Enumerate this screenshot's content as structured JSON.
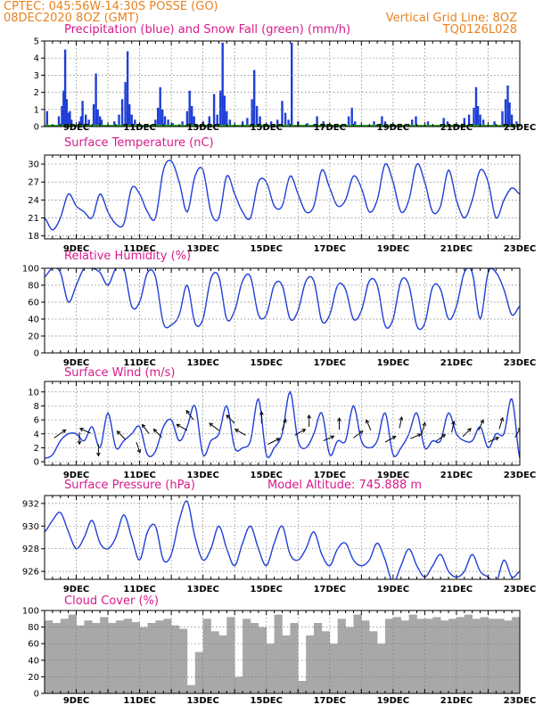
{
  "header": {
    "line1_left": "CPTEC:   045:56W-14:30S   POSSE (GO)",
    "line2_left": "08DEC2020 8OZ (GMT)",
    "line2_right": "Vertical Grid Line: 8OZ",
    "line3_right": "TQ0126L028"
  },
  "colors": {
    "line": "#1f3fd8",
    "snow": "#22aa22",
    "header": "#e8821e",
    "title": "#d81a8c",
    "cloud": "#a8a8a8"
  },
  "x_axis": {
    "start_day": 8,
    "end_day": 23,
    "tick_labels": [
      {
        "day": 9,
        "label": "9DEC"
      },
      {
        "day": 11,
        "label": "11DEC"
      },
      {
        "day": 13,
        "label": "13DEC"
      },
      {
        "day": 15,
        "label": "15DEC"
      },
      {
        "day": 17,
        "label": "17DEC"
      },
      {
        "day": 19,
        "label": "19DEC"
      },
      {
        "day": 21,
        "label": "21DEC"
      },
      {
        "day": 23,
        "label": "23DEC"
      }
    ],
    "minor_ticks_per_day": 4
  },
  "chart_data": [
    {
      "id": "precip",
      "type": "bar",
      "title": "Precipitation (blue) and Snow Fall (green) (mm/h)",
      "ylim": [
        0,
        5
      ],
      "yticks": [
        0,
        1,
        2,
        3,
        4,
        5
      ],
      "series": [
        {
          "name": "Precipitation",
          "color": "#1f3fd8",
          "points": [
            [
              8.08,
              0.9
            ],
            [
              8.45,
              0.6
            ],
            [
              8.55,
              1.2
            ],
            [
              8.6,
              2.1
            ],
            [
              8.65,
              4.5
            ],
            [
              8.7,
              1.6
            ],
            [
              8.75,
              0.8
            ],
            [
              8.8,
              0.9
            ],
            [
              8.85,
              0.4
            ],
            [
              9.1,
              0.3
            ],
            [
              9.15,
              0.6
            ],
            [
              9.2,
              1.5
            ],
            [
              9.3,
              0.7
            ],
            [
              9.4,
              0.4
            ],
            [
              9.55,
              1.3
            ],
            [
              9.62,
              3.1
            ],
            [
              9.68,
              1.0
            ],
            [
              9.75,
              0.6
            ],
            [
              9.8,
              0.4
            ],
            [
              10.2,
              0.3
            ],
            [
              10.35,
              0.7
            ],
            [
              10.45,
              1.6
            ],
            [
              10.55,
              2.6
            ],
            [
              10.62,
              4.4
            ],
            [
              10.68,
              1.3
            ],
            [
              10.75,
              0.7
            ],
            [
              10.85,
              0.4
            ],
            [
              11.5,
              0.4
            ],
            [
              11.58,
              1.1
            ],
            [
              11.65,
              2.3
            ],
            [
              11.72,
              1.0
            ],
            [
              11.8,
              0.6
            ],
            [
              11.9,
              0.4
            ],
            [
              12.05,
              0.2
            ],
            [
              12.35,
              0.3
            ],
            [
              12.5,
              0.9
            ],
            [
              12.58,
              2.1
            ],
            [
              12.65,
              1.2
            ],
            [
              12.72,
              0.6
            ],
            [
              13.0,
              0.3
            ],
            [
              13.2,
              0.6
            ],
            [
              13.35,
              1.9
            ],
            [
              13.45,
              0.7
            ],
            [
              13.55,
              2.1
            ],
            [
              13.62,
              4.9
            ],
            [
              13.68,
              1.8
            ],
            [
              13.75,
              0.9
            ],
            [
              13.85,
              0.4
            ],
            [
              14.25,
              0.3
            ],
            [
              14.4,
              0.5
            ],
            [
              14.55,
              1.6
            ],
            [
              14.62,
              3.3
            ],
            [
              14.7,
              1.2
            ],
            [
              14.8,
              0.6
            ],
            [
              15.15,
              0.3
            ],
            [
              15.35,
              0.4
            ],
            [
              15.5,
              1.5
            ],
            [
              15.6,
              0.8
            ],
            [
              15.7,
              0.4
            ],
            [
              15.8,
              4.9
            ],
            [
              16.0,
              0.3
            ],
            [
              16.3,
              0.2
            ],
            [
              16.6,
              0.6
            ],
            [
              16.8,
              0.3
            ],
            [
              17.6,
              0.6
            ],
            [
              17.7,
              1.1
            ],
            [
              17.8,
              0.3
            ],
            [
              18.4,
              0.3
            ],
            [
              18.65,
              0.6
            ],
            [
              18.75,
              0.3
            ],
            [
              19.6,
              0.4
            ],
            [
              19.72,
              0.6
            ],
            [
              20.1,
              0.3
            ],
            [
              20.6,
              0.5
            ],
            [
              20.72,
              0.3
            ],
            [
              21.25,
              0.5
            ],
            [
              21.4,
              0.7
            ],
            [
              21.55,
              1.1
            ],
            [
              21.62,
              2.3
            ],
            [
              21.68,
              1.2
            ],
            [
              21.75,
              0.7
            ],
            [
              21.85,
              0.4
            ],
            [
              22.2,
              0.3
            ],
            [
              22.45,
              0.9
            ],
            [
              22.55,
              1.6
            ],
            [
              22.62,
              2.4
            ],
            [
              22.68,
              1.4
            ],
            [
              22.75,
              0.7
            ],
            [
              22.9,
              0.3
            ]
          ]
        },
        {
          "name": "Snow Fall",
          "color": "#22aa22",
          "values": [
            0
          ]
        }
      ]
    },
    {
      "id": "temp",
      "type": "line",
      "title": "Surface Temperature (nC)",
      "ylim": [
        17.5,
        31.5
      ],
      "yticks": [
        18,
        21,
        24,
        27,
        30
      ],
      "x": [
        8.0,
        8.25,
        8.5,
        8.75,
        9.0,
        9.25,
        9.5,
        9.75,
        10.0,
        10.25,
        10.5,
        10.75,
        11.0,
        11.25,
        11.5,
        11.75,
        12.0,
        12.25,
        12.5,
        12.75,
        13.0,
        13.25,
        13.5,
        13.75,
        14.0,
        14.25,
        14.5,
        14.75,
        15.0,
        15.25,
        15.5,
        15.75,
        16.0,
        16.25,
        16.5,
        16.75,
        17.0,
        17.25,
        17.5,
        17.75,
        18.0,
        18.25,
        18.5,
        18.75,
        19.0,
        19.25,
        19.5,
        19.75,
        20.0,
        20.25,
        20.5,
        20.75,
        21.0,
        21.25,
        21.5,
        21.75,
        22.0,
        22.25,
        22.5,
        22.75,
        23.0
      ],
      "values": [
        21,
        19,
        21,
        25,
        23,
        22,
        21,
        25,
        22,
        20,
        20,
        26,
        25,
        22,
        21,
        29,
        30.5,
        27,
        22,
        28,
        29,
        22,
        21,
        28,
        25,
        22,
        21,
        27,
        27,
        23,
        23,
        28,
        25,
        22,
        23,
        29,
        26,
        23,
        24,
        28,
        26,
        22,
        24,
        30,
        27,
        22,
        24,
        30,
        27,
        22,
        23,
        29,
        24,
        21,
        24,
        29,
        27,
        21,
        24,
        26,
        25
      ]
    },
    {
      "id": "rh",
      "type": "line",
      "title": "Relative Humidity (%)",
      "ylim": [
        0,
        100
      ],
      "yticks": [
        0,
        20,
        40,
        60,
        80,
        100
      ],
      "x": [
        8.0,
        8.25,
        8.5,
        8.75,
        9.0,
        9.25,
        9.5,
        9.75,
        10.0,
        10.25,
        10.5,
        10.75,
        11.0,
        11.25,
        11.5,
        11.75,
        12.0,
        12.25,
        12.5,
        12.75,
        13.0,
        13.25,
        13.5,
        13.75,
        14.0,
        14.25,
        14.5,
        14.75,
        15.0,
        15.25,
        15.5,
        15.75,
        16.0,
        16.25,
        16.5,
        16.75,
        17.0,
        17.25,
        17.5,
        17.75,
        18.0,
        18.25,
        18.5,
        18.75,
        19.0,
        19.25,
        19.5,
        19.75,
        20.0,
        20.25,
        20.5,
        20.75,
        21.0,
        21.25,
        21.5,
        21.75,
        22.0,
        22.25,
        22.5,
        22.75,
        23.0
      ],
      "values": [
        90,
        100,
        95,
        60,
        80,
        100,
        100,
        95,
        80,
        100,
        100,
        55,
        60,
        95,
        90,
        35,
        33,
        45,
        80,
        35,
        40,
        88,
        90,
        40,
        50,
        85,
        90,
        45,
        45,
        80,
        80,
        40,
        50,
        85,
        85,
        38,
        45,
        80,
        75,
        40,
        50,
        85,
        80,
        32,
        40,
        85,
        80,
        32,
        35,
        78,
        75,
        40,
        55,
        95,
        95,
        40,
        95,
        95,
        75,
        45,
        55
      ]
    },
    {
      "id": "wind",
      "type": "line",
      "title": "Surface Wind (m/s)",
      "ylim": [
        -0.5,
        11.5
      ],
      "yticks": [
        0,
        2,
        4,
        6,
        8,
        10
      ],
      "x": [
        8.0,
        8.25,
        8.5,
        8.75,
        9.0,
        9.25,
        9.5,
        9.75,
        10.0,
        10.25,
        10.5,
        10.75,
        11.0,
        11.25,
        11.5,
        11.75,
        12.0,
        12.25,
        12.5,
        12.75,
        13.0,
        13.25,
        13.5,
        13.75,
        14.0,
        14.25,
        14.5,
        14.75,
        15.0,
        15.25,
        15.5,
        15.75,
        16.0,
        16.25,
        16.5,
        16.75,
        17.0,
        17.25,
        17.5,
        17.75,
        18.0,
        18.25,
        18.5,
        18.75,
        19.0,
        19.25,
        19.5,
        19.75,
        20.0,
        20.25,
        20.5,
        20.75,
        21.0,
        21.25,
        21.5,
        21.75,
        22.0,
        22.25,
        22.5,
        22.75,
        23.0
      ],
      "values": [
        0.5,
        1,
        3,
        4,
        4,
        3,
        5,
        2,
        7,
        2,
        3,
        4,
        5,
        1,
        1.5,
        5,
        6,
        3,
        5,
        8,
        1,
        3,
        4,
        8,
        2,
        2,
        3,
        9,
        1,
        2,
        4,
        10,
        3,
        2,
        4,
        7,
        1,
        3,
        3,
        8,
        3,
        2,
        3,
        7,
        1,
        2,
        4,
        7,
        2,
        3,
        3,
        7,
        4,
        3,
        3,
        5,
        2,
        4,
        4,
        9,
        0.5
      ],
      "arrows": [
        [
          8.3,
          3.4,
          1,
          0.7
        ],
        [
          9.1,
          4.2,
          0,
          -1
        ],
        [
          9.45,
          4.1,
          -0.9,
          0.4
        ],
        [
          9.7,
          2.5,
          0,
          -1
        ],
        [
          10.55,
          3.2,
          -0.7,
          0.7
        ],
        [
          10.9,
          2.8,
          0.3,
          -0.9
        ],
        [
          11.3,
          4.0,
          -0.6,
          0.8
        ],
        [
          11.7,
          3.5,
          -0.7,
          0.7
        ],
        [
          12.5,
          4.5,
          -0.9,
          0.5
        ],
        [
          12.7,
          6.0,
          -0.6,
          0.8
        ],
        [
          13.5,
          4.5,
          -0.8,
          0.6
        ],
        [
          14.0,
          5.5,
          -0.7,
          0.7
        ],
        [
          14.35,
          3.8,
          -0.9,
          0.5
        ],
        [
          14.85,
          5.5,
          0,
          1
        ],
        [
          15.05,
          2.5,
          1,
          0.5
        ],
        [
          15.5,
          4.5,
          0.3,
          0.95
        ],
        [
          15.9,
          3.8,
          0.9,
          0.5
        ],
        [
          16.35,
          5.0,
          0,
          1
        ],
        [
          16.8,
          3.0,
          0.9,
          0.4
        ],
        [
          17.3,
          4.6,
          0,
          1
        ],
        [
          17.75,
          3.4,
          0.8,
          0.6
        ],
        [
          18.3,
          4.5,
          -0.4,
          0.9
        ],
        [
          18.75,
          2.8,
          0.9,
          0.5
        ],
        [
          19.2,
          4.8,
          0.2,
          0.95
        ],
        [
          19.55,
          3.3,
          0.9,
          0.4
        ],
        [
          19.9,
          4.0,
          0.3,
          0.95
        ],
        [
          20.35,
          2.9,
          0.8,
          0.6
        ],
        [
          20.85,
          4.2,
          0.2,
          0.95
        ],
        [
          21.2,
          3.6,
          0.7,
          0.7
        ],
        [
          21.7,
          4.5,
          0.4,
          0.9
        ],
        [
          22.0,
          2.8,
          0.9,
          0.4
        ],
        [
          22.35,
          4.7,
          0.3,
          0.95
        ],
        [
          22.85,
          3.5,
          0.5,
          0.85
        ]
      ]
    },
    {
      "id": "press",
      "type": "line",
      "title": "Surface Pressure (hPa)",
      "annotation": "Model Altitude: 745.888 m",
      "ylim": [
        925.3,
        932.7
      ],
      "yticks": [
        926,
        928,
        930,
        932
      ],
      "x": [
        8.0,
        8.25,
        8.5,
        8.75,
        9.0,
        9.25,
        9.5,
        9.75,
        10.0,
        10.25,
        10.5,
        10.75,
        11.0,
        11.25,
        11.5,
        11.75,
        12.0,
        12.25,
        12.5,
        12.75,
        13.0,
        13.25,
        13.5,
        13.75,
        14.0,
        14.25,
        14.5,
        14.75,
        15.0,
        15.25,
        15.5,
        15.75,
        16.0,
        16.25,
        16.5,
        16.75,
        17.0,
        17.25,
        17.5,
        17.75,
        18.0,
        18.25,
        18.5,
        18.75,
        19.0,
        19.25,
        19.5,
        19.75,
        20.0,
        20.25,
        20.5,
        20.75,
        21.0,
        21.25,
        21.5,
        21.75,
        22.0,
        22.25,
        22.5,
        22.75,
        23.0
      ],
      "values": [
        929.5,
        930.5,
        931.2,
        929.5,
        928,
        929,
        930.5,
        928.5,
        928,
        929,
        931,
        929,
        927,
        929.5,
        930,
        927,
        927.5,
        930.5,
        932.2,
        929,
        927,
        928,
        930,
        928,
        926.5,
        928.5,
        930,
        928,
        926.5,
        928.5,
        930,
        927.5,
        927,
        928,
        929.5,
        927.5,
        926.5,
        928,
        928.5,
        927,
        926.5,
        927,
        928.5,
        927,
        925,
        926.5,
        928,
        926.5,
        925.5,
        926.5,
        927.5,
        926,
        925.5,
        926,
        927.5,
        926,
        925.5,
        925,
        927,
        925.5,
        926
      ]
    },
    {
      "id": "cloud",
      "type": "area",
      "title": "Cloud Cover (%)",
      "ylim": [
        0,
        100
      ],
      "yticks": [
        0,
        20,
        40,
        60,
        80,
        100
      ],
      "x": [
        8.0,
        8.25,
        8.5,
        8.75,
        9.0,
        9.25,
        9.5,
        9.75,
        10.0,
        10.25,
        10.5,
        10.75,
        11.0,
        11.25,
        11.5,
        11.75,
        12.0,
        12.25,
        12.5,
        12.75,
        13.0,
        13.25,
        13.5,
        13.75,
        14.0,
        14.25,
        14.5,
        14.75,
        15.0,
        15.25,
        15.5,
        15.75,
        16.0,
        16.25,
        16.5,
        16.75,
        17.0,
        17.25,
        17.5,
        17.75,
        18.0,
        18.25,
        18.5,
        18.75,
        19.0,
        19.25,
        19.5,
        19.75,
        20.0,
        20.25,
        20.5,
        20.75,
        21.0,
        21.25,
        21.5,
        21.75,
        22.0,
        22.25,
        22.5,
        22.75,
        23.0
      ],
      "values": [
        88,
        85,
        90,
        95,
        82,
        88,
        85,
        92,
        85,
        88,
        90,
        86,
        80,
        85,
        88,
        90,
        82,
        78,
        10,
        50,
        90,
        75,
        70,
        92,
        20,
        90,
        85,
        80,
        60,
        95,
        70,
        85,
        15,
        70,
        85,
        75,
        60,
        90,
        80,
        95,
        88,
        75,
        60,
        90,
        92,
        88,
        95,
        90,
        90,
        92,
        88,
        90,
        92,
        95,
        90,
        92,
        90,
        90,
        88,
        92,
        88
      ]
    }
  ]
}
